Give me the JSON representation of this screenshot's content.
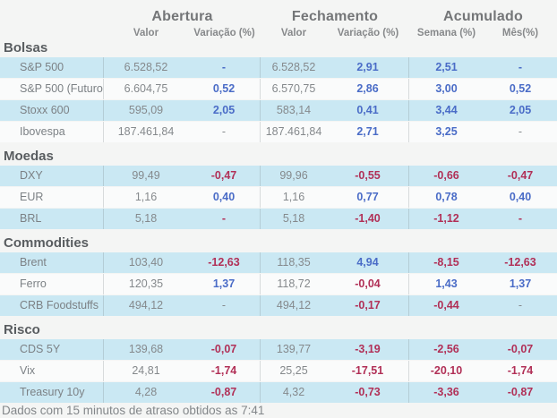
{
  "header": {
    "groups": [
      "Abertura",
      "Fechamento",
      "Acumulado"
    ],
    "subcolumns": [
      "Valor",
      "Variação (%)",
      "Valor",
      "Variação (%)",
      "Semana (%)",
      "Mês(%)"
    ]
  },
  "colors": {
    "positive": "#4a6cc7",
    "negative": "#b13057",
    "neutral": "#85898c",
    "row_highlight": "#cae8f3",
    "row_plain": "#fafbfb",
    "background": "#f4f5f4"
  },
  "sections": [
    {
      "title": "Bolsas",
      "rows": [
        {
          "label": "S&P 500",
          "cells": [
            {
              "text": "6.528,52",
              "type": "val"
            },
            {
              "text": "-",
              "type": "pos"
            },
            {
              "text": "6.528,52",
              "type": "val"
            },
            {
              "text": "2,91",
              "type": "pos"
            },
            {
              "text": "2,51",
              "type": "pos"
            },
            {
              "text": "-",
              "type": "pos"
            }
          ]
        },
        {
          "label": "S&P 500 (Futuro)",
          "cells": [
            {
              "text": "6.604,75",
              "type": "val"
            },
            {
              "text": "0,52",
              "type": "pos"
            },
            {
              "text": "6.570,75",
              "type": "val"
            },
            {
              "text": "2,86",
              "type": "pos"
            },
            {
              "text": "3,00",
              "type": "pos"
            },
            {
              "text": "0,52",
              "type": "pos"
            }
          ]
        },
        {
          "label": "Stoxx 600",
          "cells": [
            {
              "text": "595,09",
              "type": "val"
            },
            {
              "text": "2,05",
              "type": "pos"
            },
            {
              "text": "583,14",
              "type": "val"
            },
            {
              "text": "0,41",
              "type": "pos"
            },
            {
              "text": "3,44",
              "type": "pos"
            },
            {
              "text": "2,05",
              "type": "pos"
            }
          ]
        },
        {
          "label": "Ibovespa",
          "cells": [
            {
              "text": "187.461,84",
              "type": "val"
            },
            {
              "text": "-",
              "type": "val"
            },
            {
              "text": "187.461,84",
              "type": "val"
            },
            {
              "text": "2,71",
              "type": "pos"
            },
            {
              "text": "3,25",
              "type": "pos"
            },
            {
              "text": "-",
              "type": "val"
            }
          ]
        }
      ]
    },
    {
      "title": "Moedas",
      "rows": [
        {
          "label": "DXY",
          "cells": [
            {
              "text": "99,49",
              "type": "val"
            },
            {
              "text": "-0,47",
              "type": "neg"
            },
            {
              "text": "99,96",
              "type": "val"
            },
            {
              "text": "-0,55",
              "type": "neg"
            },
            {
              "text": "-0,66",
              "type": "neg"
            },
            {
              "text": "-0,47",
              "type": "neg"
            }
          ]
        },
        {
          "label": "EUR",
          "cells": [
            {
              "text": "1,16",
              "type": "val"
            },
            {
              "text": "0,40",
              "type": "pos"
            },
            {
              "text": "1,16",
              "type": "val"
            },
            {
              "text": "0,77",
              "type": "pos"
            },
            {
              "text": "0,78",
              "type": "pos"
            },
            {
              "text": "0,40",
              "type": "pos"
            }
          ]
        },
        {
          "label": "BRL",
          "cells": [
            {
              "text": "5,18",
              "type": "val"
            },
            {
              "text": "-",
              "type": "neg"
            },
            {
              "text": "5,18",
              "type": "val"
            },
            {
              "text": "-1,40",
              "type": "neg"
            },
            {
              "text": "-1,12",
              "type": "neg"
            },
            {
              "text": "-",
              "type": "neg"
            }
          ]
        }
      ]
    },
    {
      "title": "Commodities",
      "rows": [
        {
          "label": "Brent",
          "cells": [
            {
              "text": "103,40",
              "type": "val"
            },
            {
              "text": "-12,63",
              "type": "neg"
            },
            {
              "text": "118,35",
              "type": "val"
            },
            {
              "text": "4,94",
              "type": "pos"
            },
            {
              "text": "-8,15",
              "type": "neg"
            },
            {
              "text": "-12,63",
              "type": "neg"
            }
          ]
        },
        {
          "label": "Ferro",
          "cells": [
            {
              "text": "120,35",
              "type": "val"
            },
            {
              "text": "1,37",
              "type": "pos"
            },
            {
              "text": "118,72",
              "type": "val"
            },
            {
              "text": "-0,04",
              "type": "neg"
            },
            {
              "text": "1,43",
              "type": "pos"
            },
            {
              "text": "1,37",
              "type": "pos"
            }
          ]
        },
        {
          "label": "CRB Foodstuffs",
          "cells": [
            {
              "text": "494,12",
              "type": "val"
            },
            {
              "text": "-",
              "type": "val"
            },
            {
              "text": "494,12",
              "type": "val"
            },
            {
              "text": "-0,17",
              "type": "neg"
            },
            {
              "text": "-0,44",
              "type": "neg"
            },
            {
              "text": "-",
              "type": "val"
            }
          ]
        }
      ]
    },
    {
      "title": "Risco",
      "rows": [
        {
          "label": "CDS 5Y",
          "cells": [
            {
              "text": "139,68",
              "type": "val"
            },
            {
              "text": "-0,07",
              "type": "neg"
            },
            {
              "text": "139,77",
              "type": "val"
            },
            {
              "text": "-3,19",
              "type": "neg"
            },
            {
              "text": "-2,56",
              "type": "neg"
            },
            {
              "text": "-0,07",
              "type": "neg"
            }
          ]
        },
        {
          "label": "Vix",
          "cells": [
            {
              "text": "24,81",
              "type": "val"
            },
            {
              "text": "-1,74",
              "type": "neg"
            },
            {
              "text": "25,25",
              "type": "val"
            },
            {
              "text": "-17,51",
              "type": "neg"
            },
            {
              "text": "-20,10",
              "type": "neg"
            },
            {
              "text": "-1,74",
              "type": "neg"
            }
          ]
        },
        {
          "label": "Treasury 10y",
          "cells": [
            {
              "text": "4,28",
              "type": "val"
            },
            {
              "text": "-0,87",
              "type": "neg"
            },
            {
              "text": "4,32",
              "type": "val"
            },
            {
              "text": "-0,73",
              "type": "neg"
            },
            {
              "text": "-3,36",
              "type": "neg"
            },
            {
              "text": "-0,87",
              "type": "neg"
            }
          ]
        }
      ]
    }
  ],
  "footer": "Dados com 15 minutos de atraso obtidos as 7:41"
}
